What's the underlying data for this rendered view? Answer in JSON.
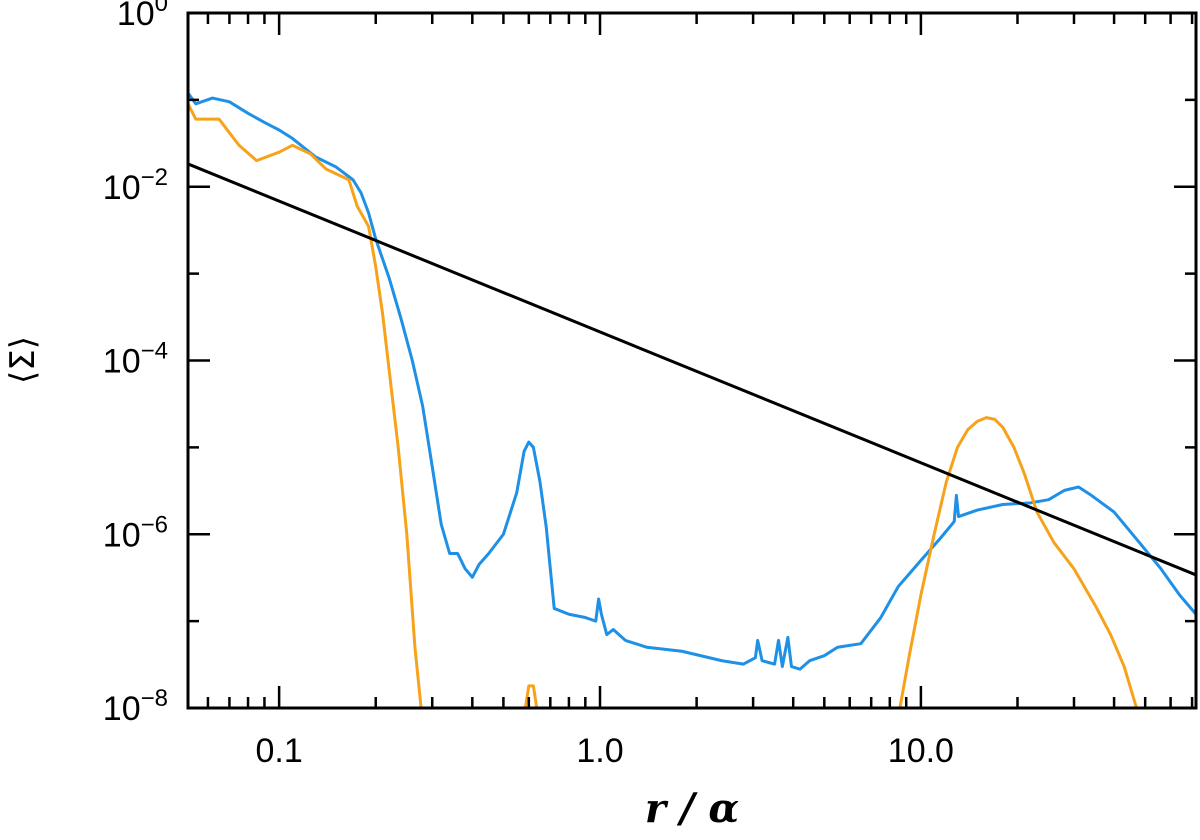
{
  "chart_data": {
    "type": "line",
    "title": "",
    "xlabel": "r / α",
    "ylabel": "⟨Σ⟩",
    "x_scale": "log",
    "y_scale": "log",
    "xlim": [
      0.052,
      72
    ],
    "ylim": [
      1e-08,
      1
    ],
    "x_ticks": [
      {
        "value": 0.1,
        "label": "0.1"
      },
      {
        "value": 1.0,
        "label": "1.0"
      },
      {
        "value": 10.0,
        "label": "10.0"
      }
    ],
    "y_ticks": [
      {
        "value": 1e-08,
        "base": "10",
        "exp": "−8"
      },
      {
        "value": 1e-06,
        "base": "10",
        "exp": "−6"
      },
      {
        "value": 0.0001,
        "base": "10",
        "exp": "−4"
      },
      {
        "value": 0.01,
        "base": "10",
        "exp": "−2"
      },
      {
        "value": 1,
        "base": "10",
        "exp": "0"
      }
    ],
    "grid": false,
    "legend": "none",
    "series": [
      {
        "color": "#1E90E6",
        "points": [
          [
            0.052,
            0.12
          ],
          [
            0.055,
            0.09
          ],
          [
            0.062,
            0.105
          ],
          [
            0.07,
            0.095
          ],
          [
            0.08,
            0.07
          ],
          [
            0.09,
            0.055
          ],
          [
            0.1,
            0.045
          ],
          [
            0.11,
            0.036
          ],
          [
            0.13,
            0.022
          ],
          [
            0.15,
            0.017
          ],
          [
            0.17,
            0.012
          ],
          [
            0.18,
            0.0085
          ],
          [
            0.19,
            0.005
          ],
          [
            0.2,
            0.0025
          ],
          [
            0.22,
            0.0009
          ],
          [
            0.24,
            0.0003
          ],
          [
            0.26,
            0.0001
          ],
          [
            0.28,
            3e-05
          ],
          [
            0.3,
            6e-06
          ],
          [
            0.32,
            1.3e-06
          ],
          [
            0.34,
            6e-07
          ],
          [
            0.36,
            6e-07
          ],
          [
            0.38,
            4e-07
          ],
          [
            0.4,
            3.2e-07
          ],
          [
            0.42,
            4.5e-07
          ],
          [
            0.45,
            6e-07
          ],
          [
            0.5,
            1e-06
          ],
          [
            0.55,
            3e-06
          ],
          [
            0.58,
            9e-06
          ],
          [
            0.6,
            1.15e-05
          ],
          [
            0.62,
            1e-05
          ],
          [
            0.65,
            4e-06
          ],
          [
            0.68,
            1.2e-06
          ],
          [
            0.7,
            4e-07
          ],
          [
            0.72,
            1.4e-07
          ],
          [
            0.8,
            1.2e-07
          ],
          [
            0.9,
            1.1e-07
          ],
          [
            0.97,
            1e-07
          ],
          [
            0.99,
            1.8e-07
          ],
          [
            1.01,
            1.2e-07
          ],
          [
            1.05,
            7e-08
          ],
          [
            1.1,
            8e-08
          ],
          [
            1.2,
            6e-08
          ],
          [
            1.4,
            5e-08
          ],
          [
            1.8,
            4.5e-08
          ],
          [
            2.4,
            3.5e-08
          ],
          [
            2.8,
            3.2e-08
          ],
          [
            3.05,
            3.8e-08
          ],
          [
            3.1,
            6e-08
          ],
          [
            3.2,
            3.5e-08
          ],
          [
            3.5,
            3.2e-08
          ],
          [
            3.6,
            6e-08
          ],
          [
            3.7,
            3e-08
          ],
          [
            3.85,
            6.5e-08
          ],
          [
            3.95,
            3e-08
          ],
          [
            4.2,
            2.8e-08
          ],
          [
            4.5,
            3.5e-08
          ],
          [
            5.0,
            4e-08
          ],
          [
            5.5,
            5e-08
          ],
          [
            6.5,
            5.5e-08
          ],
          [
            7.5,
            1.1e-07
          ],
          [
            8.5,
            2.5e-07
          ],
          [
            10.0,
            5e-07
          ],
          [
            11.5,
            9e-07
          ],
          [
            12.7,
            1.4e-06
          ],
          [
            12.9,
            2.8e-06
          ],
          [
            13.1,
            1.6e-06
          ],
          [
            15.0,
            1.9e-06
          ],
          [
            18.0,
            2.2e-06
          ],
          [
            22.0,
            2.3e-06
          ],
          [
            25.0,
            2.5e-06
          ],
          [
            28.0,
            3.2e-06
          ],
          [
            31.0,
            3.5e-06
          ],
          [
            34.0,
            2.8e-06
          ],
          [
            40.0,
            1.8e-06
          ],
          [
            48.0,
            8e-07
          ],
          [
            56.0,
            4e-07
          ],
          [
            64.0,
            2e-07
          ],
          [
            72.0,
            1.2e-07
          ]
        ]
      },
      {
        "color": "#F7A21B",
        "points": [
          [
            0.052,
            0.09
          ],
          [
            0.055,
            0.06
          ],
          [
            0.065,
            0.06
          ],
          [
            0.075,
            0.03
          ],
          [
            0.085,
            0.02
          ],
          [
            0.1,
            0.025
          ],
          [
            0.11,
            0.03
          ],
          [
            0.125,
            0.024
          ],
          [
            0.14,
            0.016
          ],
          [
            0.165,
            0.012
          ],
          [
            0.175,
            0.006
          ],
          [
            0.19,
            0.0035
          ],
          [
            0.2,
            0.0012
          ],
          [
            0.21,
            0.00035
          ],
          [
            0.22,
            8e-05
          ],
          [
            0.235,
            1e-05
          ],
          [
            0.25,
            1e-06
          ],
          [
            0.265,
            5e-08
          ],
          [
            0.277,
            1e-08
          ]
        ]
      },
      {
        "color": "#F7A21B",
        "points": [
          [
            0.585,
            1e-08
          ],
          [
            0.6,
            1.8e-08
          ],
          [
            0.62,
            1.8e-08
          ],
          [
            0.635,
            1e-08
          ]
        ]
      },
      {
        "color": "#F7A21B",
        "points": [
          [
            8.6,
            1e-08
          ],
          [
            9.2,
            4e-08
          ],
          [
            10.0,
            2e-07
          ],
          [
            11.0,
            1e-06
          ],
          [
            12.0,
            4e-06
          ],
          [
            13.0,
            1e-05
          ],
          [
            14.0,
            1.6e-05
          ],
          [
            15.0,
            2e-05
          ],
          [
            16.0,
            2.2e-05
          ],
          [
            17.0,
            2.1e-05
          ],
          [
            18.0,
            1.7e-05
          ],
          [
            19.5,
            1e-05
          ],
          [
            21.0,
            5e-06
          ],
          [
            23.0,
            1.8e-06
          ],
          [
            26.0,
            8e-07
          ],
          [
            30.0,
            4e-07
          ],
          [
            35.0,
            1.5e-07
          ],
          [
            39.0,
            7e-08
          ],
          [
            43.0,
            3e-08
          ],
          [
            47.0,
            1e-08
          ]
        ]
      },
      {
        "color": "#000000",
        "points": [
          [
            0.052,
            0.0183
          ],
          [
            72.0,
            3.4e-07
          ]
        ]
      }
    ]
  }
}
